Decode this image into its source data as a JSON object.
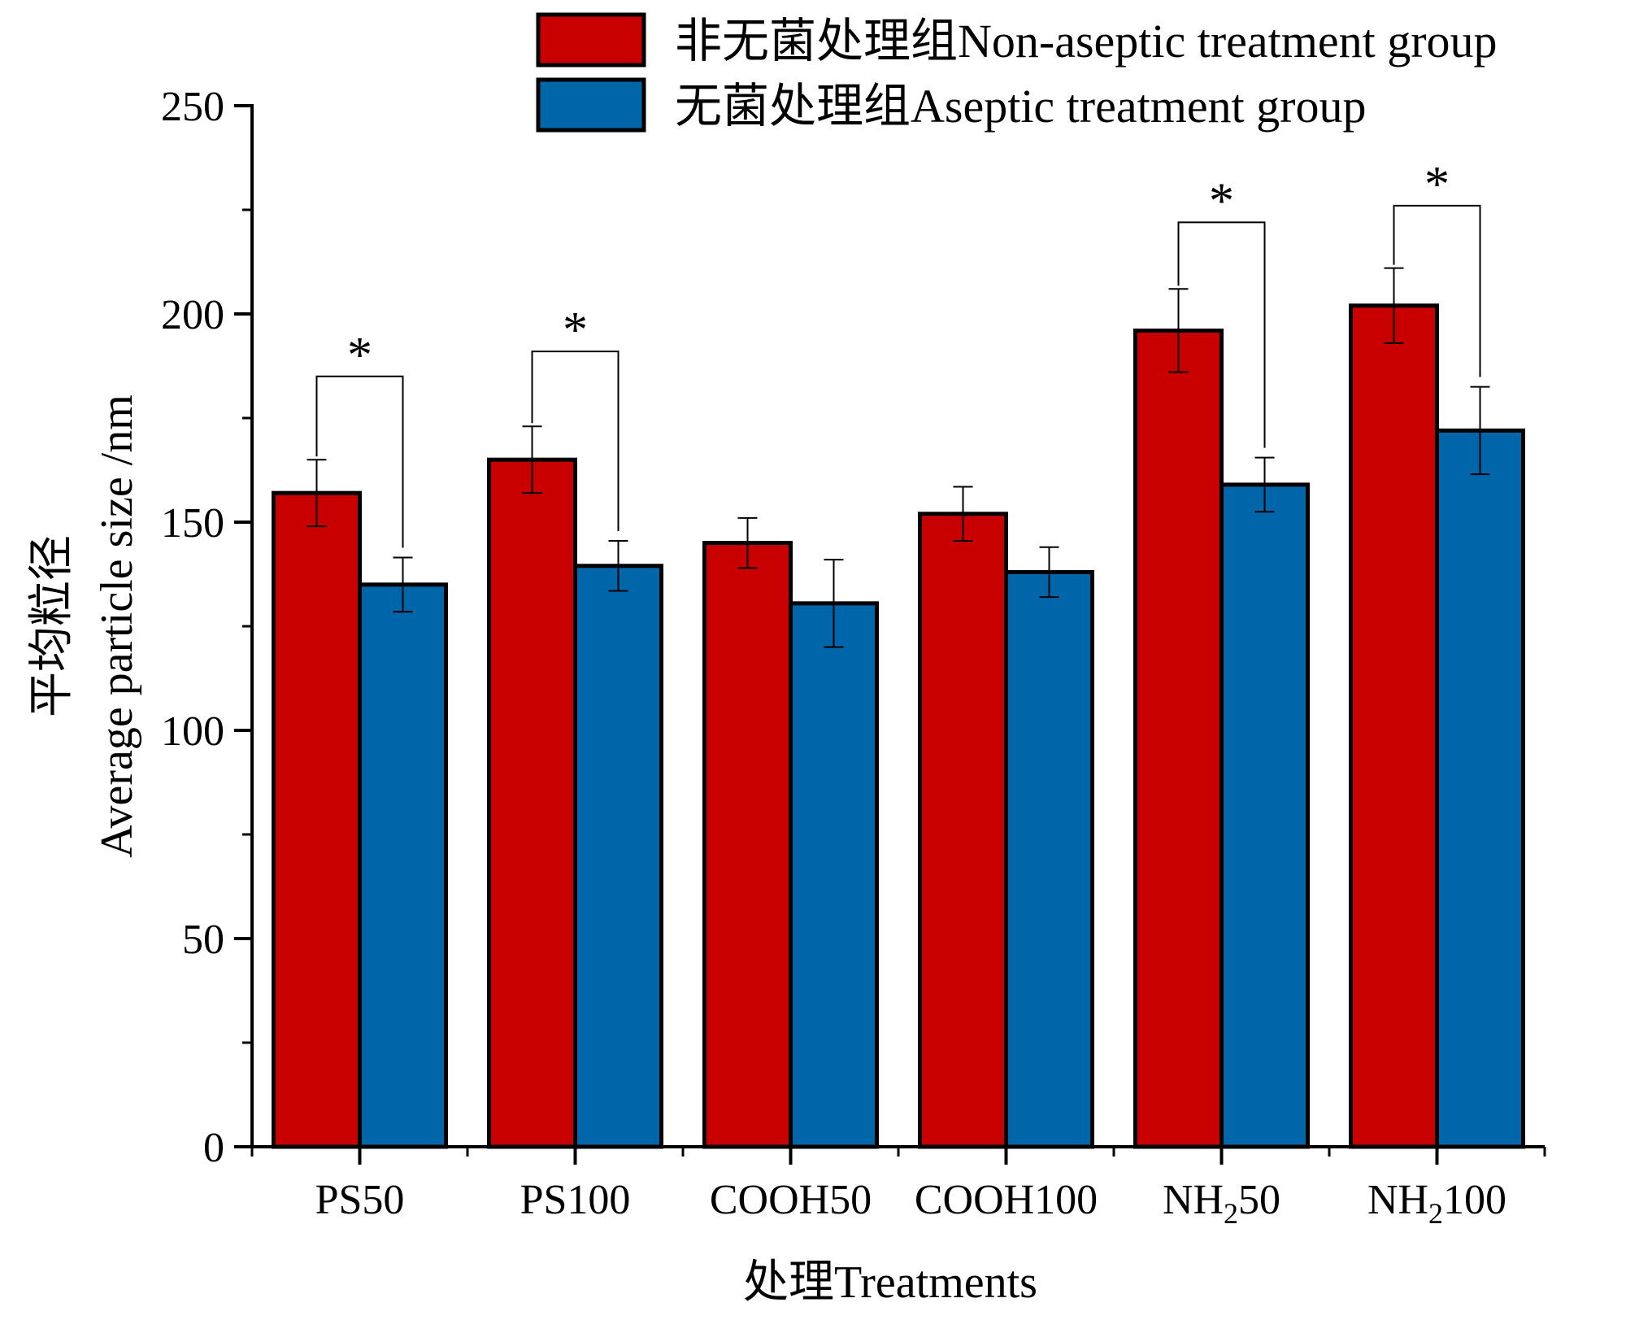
{
  "chart_data": {
    "type": "bar",
    "title": "",
    "xlabel": "处理Treatments",
    "ylabel_cn": "平均粒径",
    "ylabel": "Average particle size /nm",
    "ylim": [
      0,
      250
    ],
    "yticks": [
      0,
      50,
      100,
      150,
      200,
      250
    ],
    "categories": [
      {
        "main": "PS50",
        "sub": "",
        "tail": ""
      },
      {
        "main": "PS100",
        "sub": "",
        "tail": ""
      },
      {
        "main": "COOH50",
        "sub": "",
        "tail": ""
      },
      {
        "main": "COOH100",
        "sub": "",
        "tail": ""
      },
      {
        "main": "NH",
        "sub": "2",
        "tail": "50"
      },
      {
        "main": "NH",
        "sub": "2",
        "tail": "100"
      }
    ],
    "series": [
      {
        "name": "非无菌处理组Non-aseptic treatment group",
        "color": "#c80000",
        "values": [
          157,
          165,
          145,
          152,
          196,
          202
        ],
        "errors": [
          8,
          8,
          6,
          6.5,
          10,
          9
        ]
      },
      {
        "name": "无菌处理组Aseptic treatment group",
        "color": "#0066aa",
        "values": [
          135,
          139.5,
          130.5,
          138,
          159,
          172
        ],
        "errors": [
          6.5,
          6,
          10.5,
          6,
          6.5,
          10.5
        ]
      }
    ],
    "significance": [
      {
        "category": 0,
        "label": "*",
        "level": 185
      },
      {
        "category": 1,
        "label": "*",
        "level": 191
      },
      {
        "category": 4,
        "label": "*",
        "level": 222
      },
      {
        "category": 5,
        "label": "*",
        "level": 226
      }
    ],
    "legend_position": "top-right"
  }
}
